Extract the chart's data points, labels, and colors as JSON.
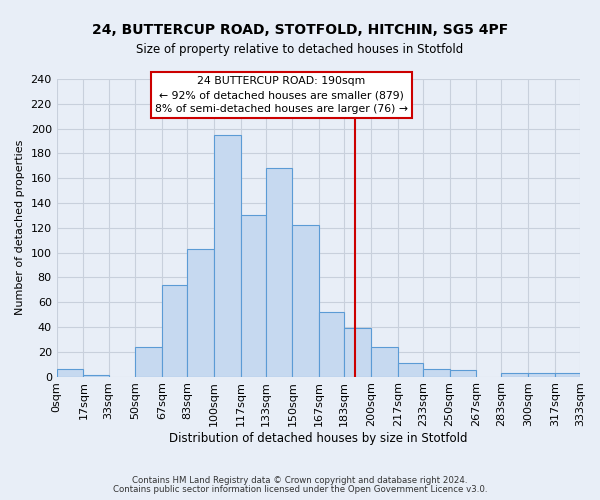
{
  "title1": "24, BUTTERCUP ROAD, STOTFOLD, HITCHIN, SG5 4PF",
  "title2": "Size of property relative to detached houses in Stotfold",
  "xlabel": "Distribution of detached houses by size in Stotfold",
  "ylabel": "Number of detached properties",
  "bin_edges": [
    0,
    17,
    33,
    50,
    67,
    83,
    100,
    117,
    133,
    150,
    167,
    183,
    200,
    217,
    233,
    250,
    267,
    283,
    300,
    317,
    333
  ],
  "bar_heights": [
    6,
    1,
    0,
    24,
    74,
    103,
    195,
    130,
    168,
    122,
    52,
    39,
    24,
    11,
    6,
    5,
    0,
    3,
    3,
    3
  ],
  "bar_color": "#c6d9f0",
  "bar_edge_color": "#5b9bd5",
  "vline_x": 190,
  "vline_color": "#cc0000",
  "ylim": [
    0,
    240
  ],
  "yticks": [
    0,
    20,
    40,
    60,
    80,
    100,
    120,
    140,
    160,
    180,
    200,
    220,
    240
  ],
  "tick_labels": [
    "0sqm",
    "17sqm",
    "33sqm",
    "50sqm",
    "67sqm",
    "83sqm",
    "100sqm",
    "117sqm",
    "133sqm",
    "150sqm",
    "167sqm",
    "183sqm",
    "200sqm",
    "217sqm",
    "233sqm",
    "250sqm",
    "267sqm",
    "283sqm",
    "300sqm",
    "317sqm",
    "333sqm"
  ],
  "ann_line1": "24 BUTTERCUP ROAD: 190sqm",
  "ann_line2": "← 92% of detached houses are smaller (879)",
  "ann_line3": "8% of semi-detached houses are larger (76) →",
  "footer1": "Contains HM Land Registry data © Crown copyright and database right 2024.",
  "footer2": "Contains public sector information licensed under the Open Government Licence v3.0.",
  "bg_color": "#e8eef7",
  "plot_bg_color": "#e8eef7",
  "grid_color": "#c8d0dc"
}
